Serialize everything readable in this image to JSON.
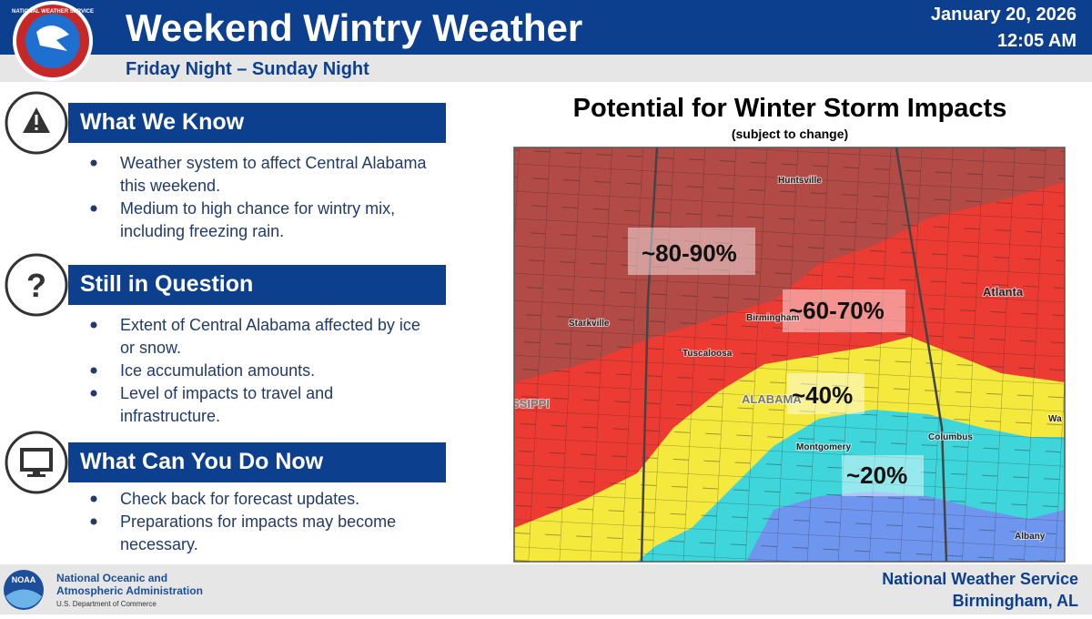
{
  "header": {
    "title": "Weekend Wintry Weather",
    "subtitle": "Friday Night – Sunday Night",
    "date": "January 20, 2026",
    "time": "12:05 AM",
    "logo_text": "NATIONAL WEATHER SERVICE"
  },
  "sections": [
    {
      "title": "What We Know",
      "bullets": [
        "Weather system to affect Central Alabama this weekend.",
        "Medium to high chance for wintry mix, including freezing rain."
      ]
    },
    {
      "title": "Still in Question",
      "bullets": [
        "Extent of Central Alabama affected by ice or snow.",
        "Ice accumulation amounts.",
        "Level of impacts to travel and infrastructure."
      ]
    },
    {
      "title": "What Can You Do Now",
      "bullets": [
        "Check back for forecast updates.",
        "Preparations for impacts may become necessary."
      ]
    }
  ],
  "map": {
    "title": "Potential for Winter Storm Impacts",
    "subtitle": "(subject to change)",
    "cities": [
      "Huntsville",
      "Atlanta",
      "Starkville",
      "Birmingham",
      "Tuscaloosa",
      "ALABAMA",
      "Montgomery",
      "Columbus",
      "Albany",
      "SSIPPI",
      "Wa"
    ],
    "probabilities": [
      "~80-90%",
      "~60-70%",
      "~40%",
      "~20%"
    ]
  },
  "footer": {
    "logo": "NOAA",
    "agency_line1": "National Oceanic and",
    "agency_line2": "Atmospheric Administration",
    "department": "U.S. Department of Commerce",
    "office": "National Weather Service",
    "location": "Birmingham, AL"
  }
}
